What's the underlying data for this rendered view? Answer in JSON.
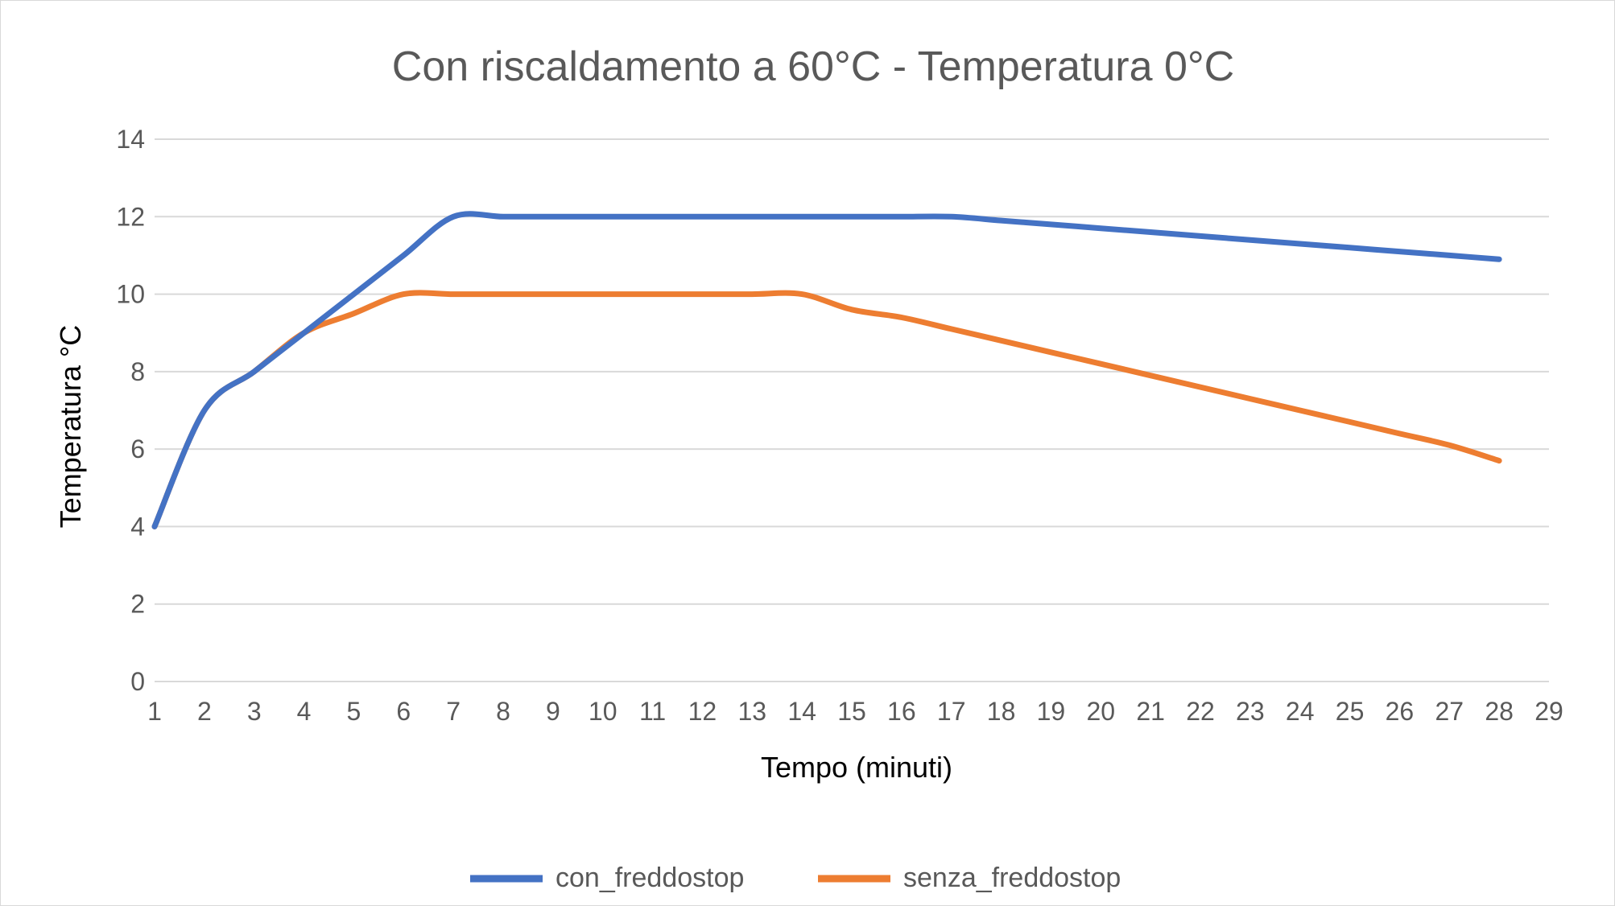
{
  "chart_data": {
    "type": "line",
    "title": "Con riscaldamento a 60°C - Temperatura 0°C",
    "xlabel": "Tempo (minuti)",
    "ylabel": "Temperatura °C",
    "x": [
      1,
      2,
      3,
      4,
      5,
      6,
      7,
      8,
      9,
      10,
      11,
      12,
      13,
      14,
      15,
      16,
      17,
      18,
      19,
      20,
      21,
      22,
      23,
      24,
      25,
      26,
      27,
      28
    ],
    "x_ticks": [
      "1",
      "2",
      "3",
      "4",
      "5",
      "6",
      "7",
      "8",
      "9",
      "10",
      "11",
      "12",
      "13",
      "14",
      "15",
      "16",
      "17",
      "18",
      "19",
      "20",
      "21",
      "22",
      "23",
      "24",
      "25",
      "26",
      "27",
      "28",
      "29"
    ],
    "y_ticks": [
      "0",
      "2",
      "4",
      "6",
      "8",
      "10",
      "12",
      "14"
    ],
    "xlim": [
      1,
      29
    ],
    "ylim": [
      0,
      14
    ],
    "grid": true,
    "legend_position": "bottom",
    "series": [
      {
        "name": "con_freddostop",
        "color": "#4472C4",
        "values": [
          4,
          7,
          8,
          9,
          10,
          11,
          12,
          12,
          12,
          12,
          12,
          12,
          12,
          12,
          12,
          12,
          12,
          11.9,
          11.8,
          11.7,
          11.6,
          11.5,
          11.4,
          11.3,
          11.2,
          11.1,
          11.0,
          10.9
        ]
      },
      {
        "name": "senza_freddostop",
        "color": "#ED7D31",
        "values": [
          4,
          7,
          8,
          9,
          9.5,
          10,
          10,
          10,
          10,
          10,
          10,
          10,
          10,
          10,
          9.6,
          9.4,
          9.1,
          8.8,
          8.5,
          8.2,
          7.9,
          7.6,
          7.3,
          7.0,
          6.7,
          6.4,
          6.1,
          5.7
        ]
      }
    ]
  }
}
